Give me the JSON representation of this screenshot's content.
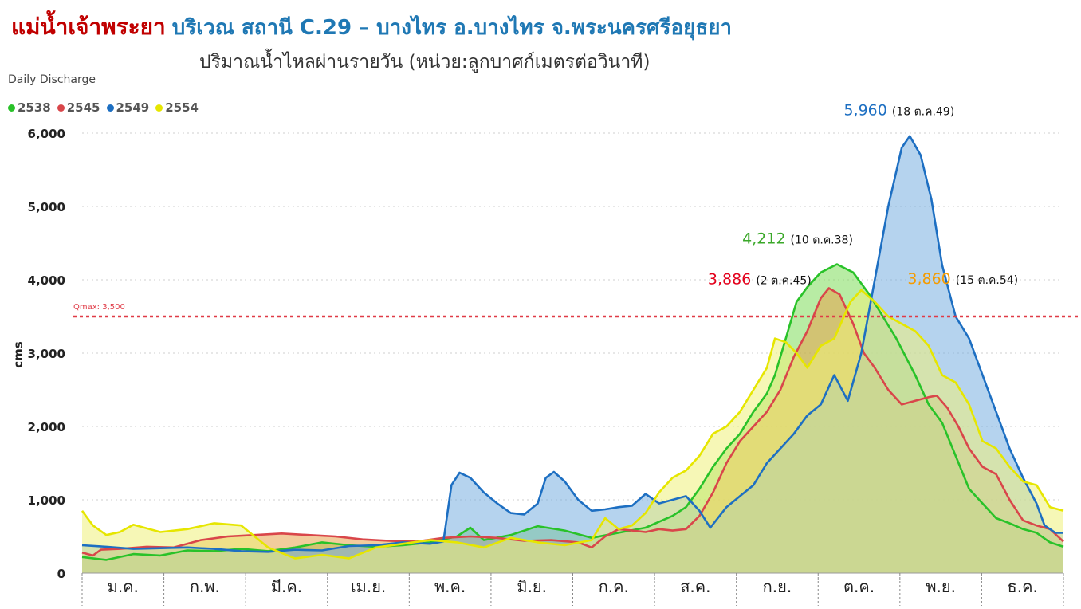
{
  "header": {
    "title": "แม่น้ำเจ้าพระยา",
    "title_location": "บริเวณ สถานี C.29 – บางไทร อ.บางไทร จ.พระนครศรีอยุธยา",
    "subtitle": "ปริมาณน้ำไหลผ่านรายวัน (หน่วย:ลูกบาศก์เมตรต่อวินาที)"
  },
  "chart_data": {
    "type": "area",
    "title": "Daily Discharge",
    "ylabel": "cms",
    "xlabel": "",
    "ylim": [
      0,
      6000
    ],
    "yticks": [
      "0",
      "1,000",
      "2,000",
      "3,000",
      "4,000",
      "5,000",
      "6,000"
    ],
    "yticks_values": [
      0,
      1000,
      2000,
      3000,
      4000,
      5000,
      6000
    ],
    "grid": true,
    "legend_position": "top-left",
    "categories": [
      "ม.ค.",
      "ก.พ.",
      "มี.ค.",
      "เม.ย.",
      "พ.ค.",
      "มิ.ย.",
      "ก.ค.",
      "ส.ค.",
      "ก.ย.",
      "ต.ค.",
      "พ.ย.",
      "ธ.ค."
    ],
    "x_unit": "day of year",
    "x_range": [
      1,
      365
    ],
    "threshold": {
      "label": "Qmax: 3,500",
      "value": 3500,
      "color": "#e03b47"
    },
    "series": [
      {
        "name": "2538",
        "color": "#29c229",
        "fill": "#7ddc5a",
        "points": [
          [
            1,
            220
          ],
          [
            10,
            180
          ],
          [
            20,
            260
          ],
          [
            30,
            240
          ],
          [
            40,
            310
          ],
          [
            50,
            300
          ],
          [
            60,
            330
          ],
          [
            70,
            300
          ],
          [
            80,
            350
          ],
          [
            90,
            420
          ],
          [
            100,
            380
          ],
          [
            110,
            360
          ],
          [
            120,
            380
          ],
          [
            130,
            420
          ],
          [
            140,
            500
          ],
          [
            145,
            620
          ],
          [
            150,
            450
          ],
          [
            160,
            520
          ],
          [
            170,
            640
          ],
          [
            180,
            580
          ],
          [
            190,
            480
          ],
          [
            200,
            550
          ],
          [
            210,
            620
          ],
          [
            215,
            700
          ],
          [
            220,
            780
          ],
          [
            225,
            900
          ],
          [
            230,
            1150
          ],
          [
            235,
            1450
          ],
          [
            240,
            1700
          ],
          [
            245,
            1900
          ],
          [
            250,
            2200
          ],
          [
            255,
            2450
          ],
          [
            258,
            2700
          ],
          [
            262,
            3200
          ],
          [
            266,
            3700
          ],
          [
            270,
            3900
          ],
          [
            275,
            4100
          ],
          [
            281,
            4212
          ],
          [
            287,
            4100
          ],
          [
            293,
            3800
          ],
          [
            298,
            3500
          ],
          [
            303,
            3200
          ],
          [
            310,
            2700
          ],
          [
            315,
            2300
          ],
          [
            320,
            2050
          ],
          [
            325,
            1600
          ],
          [
            330,
            1150
          ],
          [
            335,
            950
          ],
          [
            340,
            750
          ],
          [
            345,
            680
          ],
          [
            350,
            600
          ],
          [
            355,
            550
          ],
          [
            360,
            420
          ],
          [
            365,
            360
          ]
        ]
      },
      {
        "name": "2545",
        "color": "#d9464a",
        "fill": "#e8a24a",
        "points": [
          [
            1,
            280
          ],
          [
            5,
            240
          ],
          [
            8,
            320
          ],
          [
            15,
            330
          ],
          [
            25,
            360
          ],
          [
            35,
            350
          ],
          [
            45,
            450
          ],
          [
            55,
            500
          ],
          [
            65,
            520
          ],
          [
            75,
            540
          ],
          [
            85,
            520
          ],
          [
            95,
            500
          ],
          [
            105,
            460
          ],
          [
            115,
            440
          ],
          [
            125,
            430
          ],
          [
            135,
            480
          ],
          [
            145,
            500
          ],
          [
            155,
            480
          ],
          [
            165,
            440
          ],
          [
            175,
            450
          ],
          [
            185,
            420
          ],
          [
            190,
            350
          ],
          [
            195,
            500
          ],
          [
            200,
            600
          ],
          [
            205,
            580
          ],
          [
            210,
            560
          ],
          [
            215,
            600
          ],
          [
            220,
            580
          ],
          [
            225,
            600
          ],
          [
            230,
            780
          ],
          [
            235,
            1100
          ],
          [
            240,
            1500
          ],
          [
            245,
            1800
          ],
          [
            250,
            2000
          ],
          [
            255,
            2200
          ],
          [
            260,
            2500
          ],
          [
            265,
            2950
          ],
          [
            270,
            3300
          ],
          [
            275,
            3750
          ],
          [
            278,
            3886
          ],
          [
            282,
            3800
          ],
          [
            287,
            3400
          ],
          [
            291,
            3000
          ],
          [
            295,
            2800
          ],
          [
            300,
            2500
          ],
          [
            305,
            2300
          ],
          [
            310,
            2350
          ],
          [
            315,
            2400
          ],
          [
            318,
            2420
          ],
          [
            322,
            2250
          ],
          [
            326,
            2000
          ],
          [
            330,
            1700
          ],
          [
            335,
            1450
          ],
          [
            340,
            1350
          ],
          [
            345,
            1000
          ],
          [
            350,
            720
          ],
          [
            355,
            650
          ],
          [
            360,
            600
          ],
          [
            365,
            430
          ]
        ]
      },
      {
        "name": "2549",
        "color": "#1d6fc2",
        "fill": "#78aee0",
        "points": [
          [
            1,
            380
          ],
          [
            10,
            360
          ],
          [
            20,
            330
          ],
          [
            30,
            340
          ],
          [
            40,
            350
          ],
          [
            50,
            330
          ],
          [
            60,
            300
          ],
          [
            70,
            290
          ],
          [
            80,
            320
          ],
          [
            90,
            310
          ],
          [
            100,
            370
          ],
          [
            110,
            380
          ],
          [
            120,
            420
          ],
          [
            130,
            400
          ],
          [
            135,
            430
          ],
          [
            138,
            1200
          ],
          [
            141,
            1370
          ],
          [
            145,
            1300
          ],
          [
            150,
            1100
          ],
          [
            155,
            950
          ],
          [
            160,
            820
          ],
          [
            165,
            800
          ],
          [
            170,
            950
          ],
          [
            173,
            1300
          ],
          [
            176,
            1380
          ],
          [
            180,
            1250
          ],
          [
            185,
            1000
          ],
          [
            190,
            850
          ],
          [
            195,
            870
          ],
          [
            200,
            900
          ],
          [
            205,
            920
          ],
          [
            210,
            1080
          ],
          [
            215,
            950
          ],
          [
            220,
            1000
          ],
          [
            225,
            1050
          ],
          [
            230,
            850
          ],
          [
            234,
            620
          ],
          [
            240,
            900
          ],
          [
            245,
            1050
          ],
          [
            250,
            1200
          ],
          [
            255,
            1500
          ],
          [
            260,
            1700
          ],
          [
            265,
            1900
          ],
          [
            270,
            2150
          ],
          [
            275,
            2300
          ],
          [
            280,
            2700
          ],
          [
            285,
            2350
          ],
          [
            290,
            3000
          ],
          [
            295,
            4000
          ],
          [
            300,
            5000
          ],
          [
            305,
            5800
          ],
          [
            308,
            5960
          ],
          [
            312,
            5700
          ],
          [
            316,
            5100
          ],
          [
            320,
            4200
          ],
          [
            325,
            3500
          ],
          [
            330,
            3200
          ],
          [
            335,
            2700
          ],
          [
            340,
            2200
          ],
          [
            345,
            1700
          ],
          [
            350,
            1300
          ],
          [
            355,
            950
          ],
          [
            358,
            650
          ],
          [
            362,
            550
          ],
          [
            365,
            550
          ]
        ]
      },
      {
        "name": "2554",
        "color": "#e6e600",
        "fill": "#eef07a",
        "points": [
          [
            1,
            850
          ],
          [
            5,
            650
          ],
          [
            10,
            520
          ],
          [
            15,
            560
          ],
          [
            20,
            660
          ],
          [
            30,
            560
          ],
          [
            40,
            600
          ],
          [
            50,
            680
          ],
          [
            60,
            650
          ],
          [
            70,
            350
          ],
          [
            80,
            200
          ],
          [
            90,
            250
          ],
          [
            100,
            200
          ],
          [
            110,
            350
          ],
          [
            120,
            400
          ],
          [
            130,
            450
          ],
          [
            140,
            420
          ],
          [
            150,
            350
          ],
          [
            160,
            480
          ],
          [
            170,
            420
          ],
          [
            180,
            380
          ],
          [
            190,
            450
          ],
          [
            195,
            750
          ],
          [
            200,
            600
          ],
          [
            205,
            650
          ],
          [
            210,
            820
          ],
          [
            215,
            1100
          ],
          [
            220,
            1300
          ],
          [
            225,
            1400
          ],
          [
            230,
            1600
          ],
          [
            235,
            1900
          ],
          [
            240,
            2000
          ],
          [
            245,
            2200
          ],
          [
            250,
            2500
          ],
          [
            255,
            2800
          ],
          [
            258,
            3200
          ],
          [
            262,
            3150
          ],
          [
            266,
            3000
          ],
          [
            270,
            2800
          ],
          [
            275,
            3100
          ],
          [
            280,
            3200
          ],
          [
            286,
            3700
          ],
          [
            290,
            3860
          ],
          [
            295,
            3700
          ],
          [
            300,
            3500
          ],
          [
            305,
            3400
          ],
          [
            310,
            3300
          ],
          [
            315,
            3100
          ],
          [
            320,
            2700
          ],
          [
            325,
            2600
          ],
          [
            330,
            2300
          ],
          [
            335,
            1800
          ],
          [
            340,
            1700
          ],
          [
            345,
            1450
          ],
          [
            350,
            1250
          ],
          [
            355,
            1200
          ],
          [
            360,
            900
          ],
          [
            365,
            850
          ]
        ]
      }
    ],
    "annotations": [
      {
        "series": "2549",
        "value": "5,960",
        "date": "(18 ต.ค.49)",
        "color": "#1d6fc2"
      },
      {
        "series": "2538",
        "value": "4,212",
        "date": "(10 ต.ค.38)",
        "color": "#3aa829"
      },
      {
        "series": "2545",
        "value": "3,886",
        "date": "(2 ต.ค.45)",
        "color": "#e3001b"
      },
      {
        "series": "2554",
        "value": "3,860",
        "date": "(15 ต.ค.54)",
        "color": "#f59b00"
      }
    ]
  }
}
